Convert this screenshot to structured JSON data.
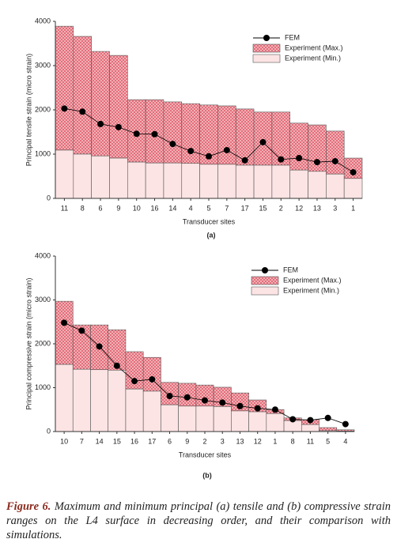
{
  "chart_data": [
    {
      "type": "bar",
      "panel_label": "(a)",
      "x_label": "Transducer sites",
      "y_label": "Principal tensile strain (micro strain)",
      "categories": [
        "11",
        "8",
        "6",
        "9",
        "10",
        "16",
        "14",
        "4",
        "5",
        "7",
        "17",
        "15",
        "2",
        "12",
        "13",
        "3",
        "1"
      ],
      "series": [
        {
          "name": "FEM",
          "color": "#000000",
          "values": [
            2030,
            1960,
            1680,
            1610,
            1460,
            1450,
            1230,
            1070,
            950,
            1090,
            860,
            1270,
            880,
            910,
            820,
            840,
            590
          ]
        },
        {
          "name": "Experiment (Max.)",
          "color": "#e0606e",
          "values": [
            3890,
            3660,
            3320,
            3230,
            2230,
            2230,
            2180,
            2140,
            2110,
            2090,
            2020,
            1950,
            1950,
            1700,
            1660,
            1520,
            910
          ]
        },
        {
          "name": "Experiment (Min.)",
          "color": "#fde4e4",
          "values": [
            1090,
            1000,
            960,
            910,
            820,
            800,
            800,
            790,
            770,
            770,
            750,
            750,
            750,
            640,
            610,
            550,
            450
          ]
        }
      ],
      "ylim": [
        0,
        4000
      ],
      "yticks": [
        0,
        1000,
        2000,
        3000,
        4000
      ],
      "legend": "upper right"
    },
    {
      "type": "bar",
      "panel_label": "(b)",
      "x_label": "Transducer sites",
      "y_label": "Principal compressive strain (micro strain)",
      "categories": [
        "10",
        "7",
        "14",
        "15",
        "16",
        "17",
        "6",
        "9",
        "2",
        "3",
        "13",
        "12",
        "1",
        "8",
        "11",
        "5",
        "4"
      ],
      "series": [
        {
          "name": "FEM",
          "color": "#000000",
          "values": [
            2480,
            2300,
            1940,
            1500,
            1150,
            1190,
            810,
            780,
            710,
            660,
            580,
            530,
            500,
            280,
            260,
            310,
            170
          ]
        },
        {
          "name": "Experiment (Max.)",
          "color": "#e0606e",
          "values": [
            2970,
            2430,
            2430,
            2320,
            1820,
            1690,
            1120,
            1100,
            1060,
            1010,
            880,
            720,
            500,
            310,
            270,
            90,
            40
          ]
        },
        {
          "name": "Experiment (Min.)",
          "color": "#fde4e4",
          "values": [
            1530,
            1420,
            1410,
            1400,
            970,
            920,
            610,
            580,
            580,
            570,
            470,
            450,
            410,
            250,
            160,
            20,
            10
          ]
        }
      ],
      "ylim": [
        0,
        4000
      ],
      "yticks": [
        0,
        1000,
        2000,
        3000,
        4000
      ],
      "legend": "upper right"
    }
  ],
  "caption": {
    "label": "Figure 6.",
    "text": "Maximum and minimum principal (a) tensile and (b) compressive strain ranges on the L4 surface in decreasing order, and their comparison with simulations."
  }
}
